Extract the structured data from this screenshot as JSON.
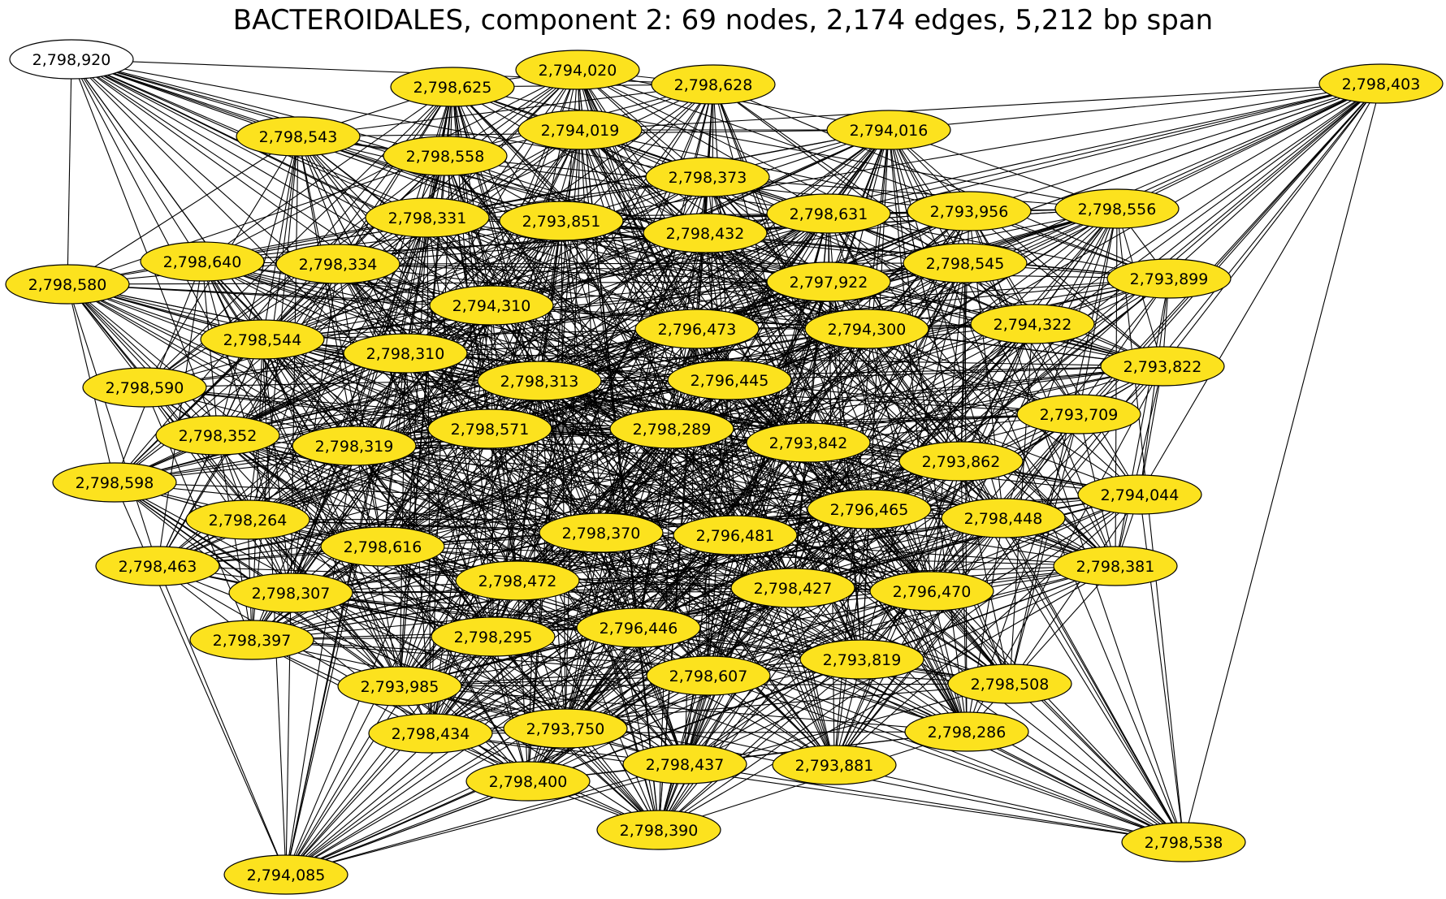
{
  "title": "BACTEROIDALES, component 2: 69 nodes, 2,174 edges, 5,212 bp span",
  "colors": {
    "node_fill": "#fce21e",
    "node_fill_highlight": "#ffffff",
    "edge": "#000000",
    "background": "#ffffff"
  },
  "graph": {
    "node_count": 69,
    "edge_count": 2174,
    "span_bp": 5212,
    "highlighted_node": "2,798,920",
    "nodes": [
      "2,798,920",
      "2,794,020",
      "2,798,625",
      "2,798,628",
      "2,798,403",
      "2,798,543",
      "2,794,019",
      "2,794,016",
      "2,798,558",
      "2,798,373",
      "2,798,331",
      "2,793,851",
      "2,798,631",
      "2,793,956",
      "2,798,556",
      "2,798,432",
      "2,798,580",
      "2,798,640",
      "2,798,334",
      "2,798,545",
      "2,793,899",
      "2,797,922",
      "2,794,310",
      "2,796,473",
      "2,794,300",
      "2,794,322",
      "2,798,544",
      "2,798,310",
      "2,793,822",
      "2,798,590",
      "2,798,313",
      "2,796,445",
      "2,793,709",
      "2,798,352",
      "2,798,571",
      "2,798,289",
      "2,798,319",
      "2,793,842",
      "2,793,862",
      "2,798,598",
      "2,794,044",
      "2,796,465",
      "2,798,264",
      "2,798,448",
      "2,798,616",
      "2,798,370",
      "2,796,481",
      "2,798,463",
      "2,798,381",
      "2,798,472",
      "2,798,307",
      "2,798,427",
      "2,796,470",
      "2,796,446",
      "2,798,397",
      "2,798,295",
      "2,793,819",
      "2,798,607",
      "2,798,508",
      "2,793,985",
      "2,793,750",
      "2,798,434",
      "2,798,286",
      "2,798,437",
      "2,793,881",
      "2,798,400",
      "2,798,390",
      "2,798,538",
      "2,794,085"
    ]
  }
}
